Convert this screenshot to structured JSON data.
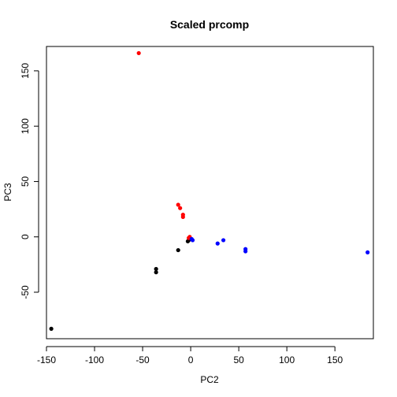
{
  "chart_data": {
    "type": "scatter",
    "title": "Scaled prcomp",
    "xlabel": "PC2",
    "ylabel": "PC3",
    "xlim": [
      -150,
      190
    ],
    "ylim": [
      -92,
      172
    ],
    "xticks": [
      -150,
      -100,
      -50,
      0,
      50,
      100,
      150
    ],
    "yticks": [
      -50,
      0,
      50,
      100,
      150
    ],
    "grid": false,
    "series": [
      {
        "color": "#000000",
        "points": [
          {
            "x": -145,
            "y": -83
          },
          {
            "x": -36,
            "y": -29
          },
          {
            "x": -36,
            "y": -32
          },
          {
            "x": -13,
            "y": -12
          },
          {
            "x": -3,
            "y": -4
          },
          {
            "x": -2,
            "y": -3
          },
          {
            "x": -1,
            "y": -2
          }
        ]
      },
      {
        "color": "#ff0000",
        "points": [
          {
            "x": -54,
            "y": 166
          },
          {
            "x": -13,
            "y": 29
          },
          {
            "x": -11,
            "y": 26
          },
          {
            "x": -8,
            "y": 20
          },
          {
            "x": -8,
            "y": 18
          },
          {
            "x": -2,
            "y": -1
          },
          {
            "x": -1,
            "y": 0
          }
        ]
      },
      {
        "color": "#0000ff",
        "points": [
          {
            "x": 184,
            "y": -14
          },
          {
            "x": 57,
            "y": -11
          },
          {
            "x": 57,
            "y": -13
          },
          {
            "x": 34,
            "y": -3
          },
          {
            "x": 28,
            "y": -6
          },
          {
            "x": 1,
            "y": -2
          },
          {
            "x": 2,
            "y": -3
          }
        ]
      }
    ]
  }
}
